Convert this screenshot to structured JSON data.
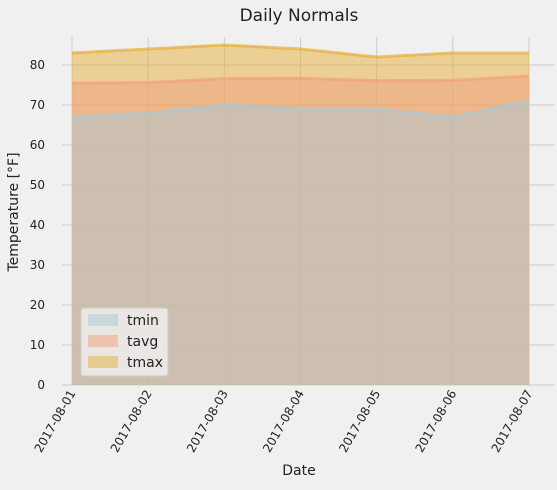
{
  "chart_data": {
    "type": "area",
    "title": "Daily Normals",
    "xlabel": "Date",
    "ylabel": "Temperature [°F]",
    "x": [
      "2017-08-01",
      "2017-08-02",
      "2017-08-03",
      "2017-08-04",
      "2017-08-05",
      "2017-08-06",
      "2017-08-07"
    ],
    "series": [
      {
        "name": "tmin",
        "values": [
          67.0,
          68.0,
          70.0,
          69.0,
          69.0,
          67.0,
          71.0
        ],
        "color": "#a9c7d6"
      },
      {
        "name": "tavg",
        "values": [
          75.5,
          75.6,
          76.6,
          76.7,
          76.1,
          76.2,
          77.2
        ],
        "color": "#f2a07e"
      },
      {
        "name": "tmax",
        "values": [
          83.0,
          84.0,
          85.0,
          84.0,
          82.0,
          83.0,
          83.0
        ],
        "color": "#e5ae38"
      }
    ],
    "ylim": [
      0,
      88
    ],
    "yticks": [
      0,
      10,
      20,
      30,
      40,
      50,
      60,
      70,
      80
    ],
    "grid": true,
    "legend": "lower-left",
    "background": "#f0f0f0",
    "grid_color": "#cbcbcb"
  }
}
